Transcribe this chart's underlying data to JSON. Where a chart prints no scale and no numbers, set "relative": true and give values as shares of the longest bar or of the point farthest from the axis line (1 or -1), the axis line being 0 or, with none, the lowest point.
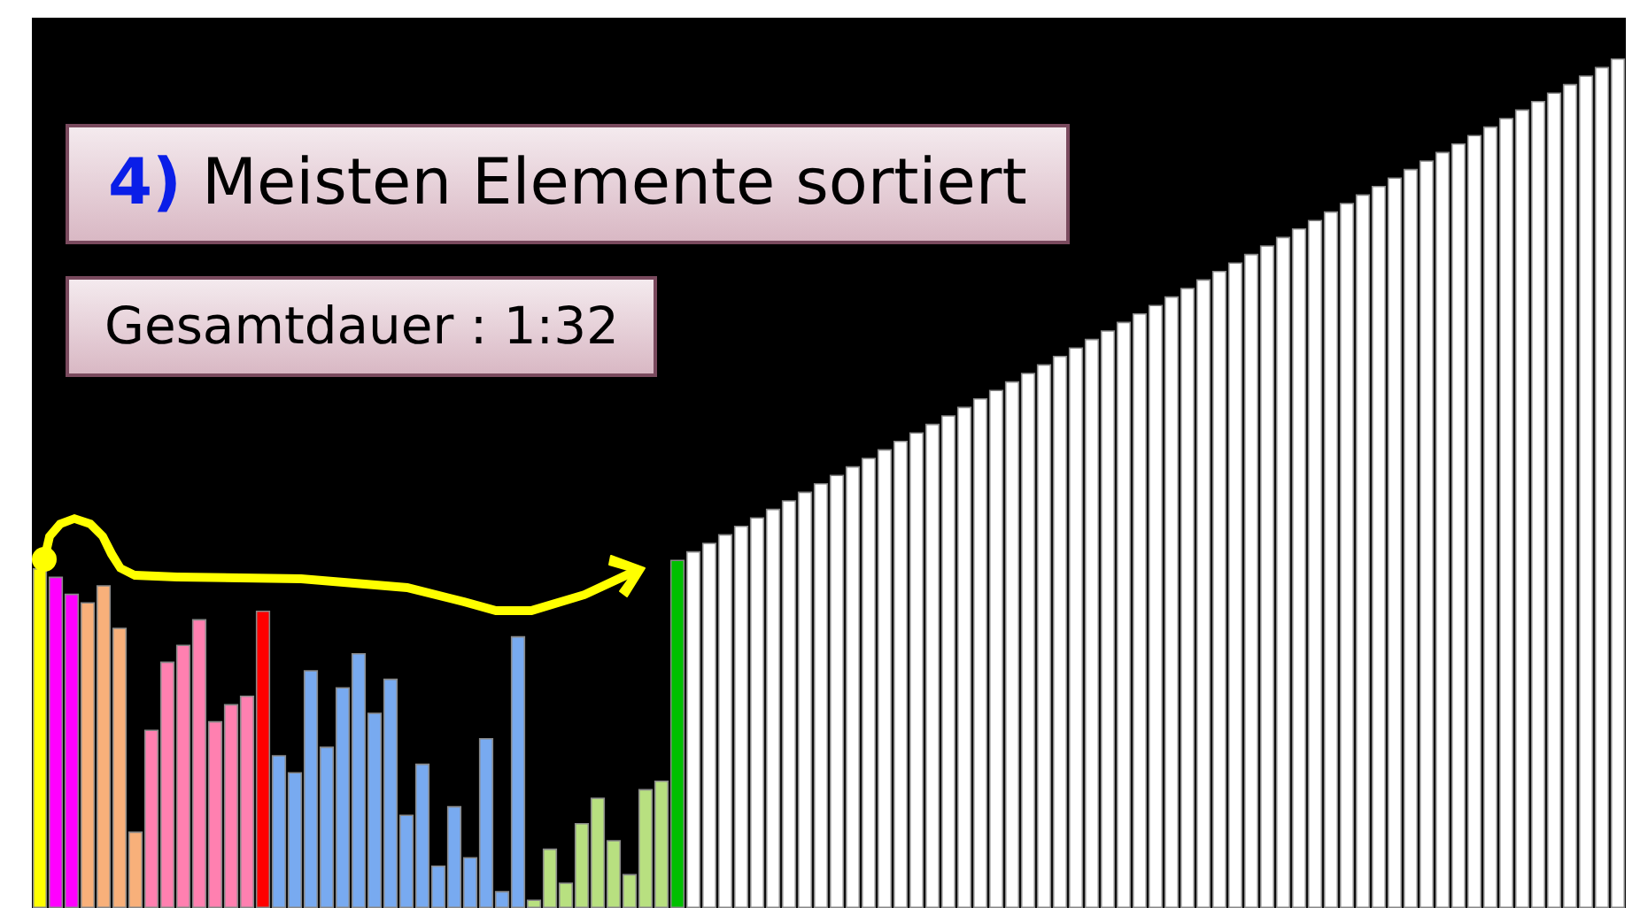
{
  "chart_data": {
    "type": "bar",
    "relative": true,
    "title": "4) Meisten Elemente sortiert",
    "subtitle": "Gesamtdauer : 1:32",
    "categories": [
      null,
      null,
      null,
      null,
      null,
      null,
      null,
      null,
      null,
      null,
      null,
      null,
      null,
      null,
      null,
      null,
      null,
      null,
      null,
      null,
      null,
      null,
      null,
      null,
      null,
      null,
      null,
      null,
      null,
      null,
      null,
      null,
      null,
      null,
      null,
      null,
      null,
      null,
      null,
      null,
      null,
      null,
      null,
      null,
      null,
      null,
      null,
      null,
      null,
      null,
      null,
      null,
      null,
      null,
      null,
      null,
      null,
      null,
      null,
      null,
      null,
      null,
      null,
      null,
      null,
      null,
      null,
      null,
      null,
      null,
      null,
      null,
      null,
      null,
      null,
      null,
      null,
      null,
      null,
      null,
      null,
      null,
      null,
      null,
      null,
      null,
      null,
      null,
      null,
      null,
      null,
      null,
      null,
      null,
      null,
      null,
      null,
      null,
      null,
      null
    ],
    "values": [
      0.4,
      0.39,
      0.37,
      0.36,
      0.38,
      0.33,
      0.09,
      0.21,
      0.29,
      0.31,
      0.34,
      0.22,
      0.24,
      0.25,
      0.35,
      0.18,
      0.16,
      0.28,
      0.19,
      0.26,
      0.3,
      0.23,
      0.27,
      0.11,
      0.17,
      0.05,
      0.12,
      0.06,
      0.2,
      0.02,
      0.32,
      0.01,
      0.07,
      0.03,
      0.1,
      0.13,
      0.08,
      0.04,
      0.14,
      0.15,
      0.41,
      0.42,
      0.43,
      0.44,
      0.45,
      0.46,
      0.47,
      0.48,
      0.49,
      0.5,
      0.51,
      0.52,
      0.53,
      0.54,
      0.55,
      0.56,
      0.57,
      0.58,
      0.59,
      0.6,
      0.61,
      0.62,
      0.63,
      0.64,
      0.65,
      0.66,
      0.67,
      0.68,
      0.69,
      0.7,
      0.71,
      0.72,
      0.73,
      0.74,
      0.75,
      0.76,
      0.77,
      0.78,
      0.79,
      0.8,
      0.81,
      0.82,
      0.83,
      0.84,
      0.85,
      0.86,
      0.87,
      0.88,
      0.89,
      0.9,
      0.91,
      0.92,
      0.93,
      0.94,
      0.95,
      0.96,
      0.97,
      0.98,
      0.99,
      1.0
    ],
    "colors": [
      "#ffff00",
      "#ff00ff",
      "#ff00ff",
      "#f8b07a",
      "#f8b07a",
      "#f8b07a",
      "#f8b07a",
      "#ff80b0",
      "#ff80b0",
      "#ff80b0",
      "#ff80b0",
      "#ff80b0",
      "#ff80b0",
      "#ff80b0",
      "#ff0000",
      "#78aaf0",
      "#78aaf0",
      "#78aaf0",
      "#78aaf0",
      "#78aaf0",
      "#78aaf0",
      "#78aaf0",
      "#78aaf0",
      "#78aaf0",
      "#78aaf0",
      "#78aaf0",
      "#78aaf0",
      "#78aaf0",
      "#78aaf0",
      "#78aaf0",
      "#78aaf0",
      "#b8e080",
      "#b8e080",
      "#b8e080",
      "#b8e080",
      "#b8e080",
      "#b8e080",
      "#b8e080",
      "#b8e080",
      "#b8e080",
      "#00c000",
      "#ffffff",
      "#ffffff",
      "#ffffff",
      "#ffffff",
      "#ffffff",
      "#ffffff",
      "#ffffff",
      "#ffffff",
      "#ffffff",
      "#ffffff",
      "#ffffff",
      "#ffffff",
      "#ffffff",
      "#ffffff",
      "#ffffff",
      "#ffffff",
      "#ffffff",
      "#ffffff",
      "#ffffff",
      "#ffffff",
      "#ffffff",
      "#ffffff",
      "#ffffff",
      "#ffffff",
      "#ffffff",
      "#ffffff",
      "#ffffff",
      "#ffffff",
      "#ffffff",
      "#ffffff",
      "#ffffff",
      "#ffffff",
      "#ffffff",
      "#ffffff",
      "#ffffff",
      "#ffffff",
      "#ffffff",
      "#ffffff",
      "#ffffff",
      "#ffffff",
      "#ffffff",
      "#ffffff",
      "#ffffff",
      "#ffffff",
      "#ffffff",
      "#ffffff",
      "#ffffff",
      "#ffffff",
      "#ffffff",
      "#ffffff",
      "#ffffff",
      "#ffffff",
      "#ffffff",
      "#ffffff",
      "#ffffff",
      "#ffffff",
      "#ffffff",
      "#ffffff",
      "#ffffff"
    ]
  }
}
